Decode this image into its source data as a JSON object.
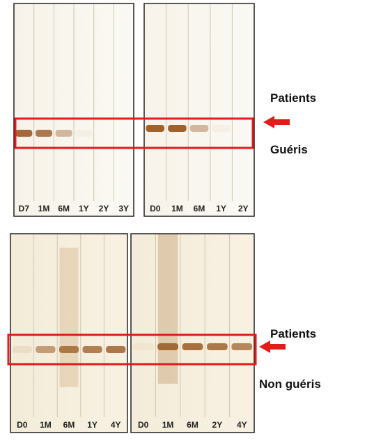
{
  "panels": [
    {
      "lanes": [
        "D7",
        "1M",
        "6M",
        "1Y",
        "2Y",
        "3Y"
      ]
    },
    {
      "lanes": [
        "D0",
        "1M",
        "6M",
        "1Y",
        "2Y"
      ]
    },
    {
      "lanes": [
        "D0",
        "1M",
        "6M",
        "1Y",
        "4Y"
      ]
    },
    {
      "lanes": [
        "D0",
        "1M",
        "6M",
        "2Y",
        "4Y"
      ]
    }
  ],
  "annotations": {
    "top_1": "Patients",
    "top_2": "Guéris",
    "bottom_1": "Patients",
    "bottom_2": "Non guéris"
  }
}
